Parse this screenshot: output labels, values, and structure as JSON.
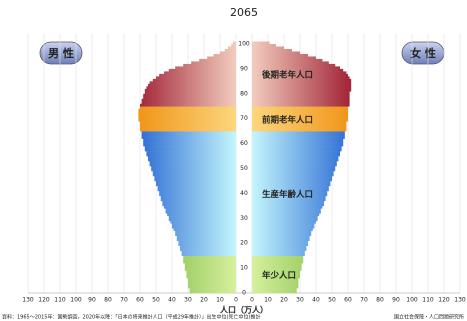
{
  "chart_data": {
    "type": "population-pyramid",
    "title": "2065",
    "left_label": "男 性",
    "right_label": "女 性",
    "x_label": "人口（万人）",
    "source": "資料：1965～2015年：国勢調査，2020年以降：「日本の将来推計人口（平成29年推計）」出生中位(死亡中位)推計",
    "logo": "国立社会保障・人口問題研究所",
    "ages": [
      0,
      1,
      2,
      3,
      4,
      5,
      6,
      7,
      8,
      9,
      10,
      11,
      12,
      13,
      14,
      15,
      16,
      17,
      18,
      19,
      20,
      21,
      22,
      23,
      24,
      25,
      26,
      27,
      28,
      29,
      30,
      31,
      32,
      33,
      34,
      35,
      36,
      37,
      38,
      39,
      40,
      41,
      42,
      43,
      44,
      45,
      46,
      47,
      48,
      49,
      50,
      51,
      52,
      53,
      54,
      55,
      56,
      57,
      58,
      59,
      60,
      61,
      62,
      63,
      64,
      65,
      66,
      67,
      68,
      69,
      70,
      71,
      72,
      73,
      74,
      75,
      76,
      77,
      78,
      79,
      80,
      81,
      82,
      83,
      84,
      85,
      86,
      87,
      88,
      89,
      90,
      91,
      92,
      93,
      94,
      95,
      96,
      97,
      98,
      99,
      100
    ],
    "series": [
      {
        "name": "男 性",
        "side": "left",
        "values": [
          29,
          29,
          30,
          30,
          30,
          30,
          31,
          31,
          31,
          32,
          32,
          32,
          33,
          33,
          33,
          34,
          34,
          35,
          35,
          36,
          36,
          37,
          37,
          38,
          38,
          39,
          40,
          40,
          41,
          42,
          42,
          43,
          44,
          44,
          45,
          46,
          46,
          47,
          47,
          48,
          48,
          49,
          49,
          50,
          50,
          51,
          51,
          52,
          52,
          53,
          53,
          54,
          54,
          55,
          55,
          56,
          56,
          57,
          57,
          58,
          58,
          58,
          59,
          59,
          59,
          60,
          60,
          60,
          60,
          61,
          61,
          61,
          61,
          61,
          60,
          60,
          59,
          59,
          58,
          58,
          57,
          57,
          56,
          55,
          54,
          52,
          50,
          48,
          45,
          42,
          38,
          33,
          28,
          23,
          18,
          14,
          10,
          7,
          5,
          3,
          2
        ]
      },
      {
        "name": "女 性",
        "side": "right",
        "values": [
          28,
          28,
          29,
          29,
          29,
          29,
          30,
          30,
          30,
          31,
          31,
          31,
          32,
          32,
          32,
          33,
          33,
          34,
          34,
          35,
          35,
          36,
          36,
          37,
          37,
          38,
          39,
          39,
          40,
          41,
          41,
          42,
          43,
          43,
          44,
          45,
          45,
          46,
          46,
          47,
          47,
          48,
          48,
          49,
          49,
          50,
          50,
          51,
          51,
          52,
          52,
          53,
          53,
          54,
          54,
          55,
          55,
          56,
          56,
          57,
          57,
          57,
          58,
          58,
          58,
          59,
          59,
          59,
          59,
          60,
          60,
          60,
          60,
          60,
          60,
          61,
          61,
          61,
          61,
          61,
          61,
          62,
          62,
          62,
          62,
          62,
          61,
          60,
          59,
          57,
          55,
          52,
          48,
          44,
          40,
          35,
          30,
          25,
          20,
          15,
          11
        ]
      }
    ],
    "age_groups": [
      {
        "label": "年少人口",
        "start": 0,
        "end": 14,
        "colors": [
          "#d6f09c",
          "#74b43e"
        ]
      },
      {
        "label": "生産年齢人口",
        "start": 15,
        "end": 64,
        "colors": [
          "#c4f6fc",
          "#2c6cd4"
        ]
      },
      {
        "label": "前期老年人口",
        "start": 65,
        "end": 74,
        "colors": [
          "#fcd67e",
          "#f0961a"
        ]
      },
      {
        "label": "後期老年人口",
        "start": 75,
        "end": 100,
        "colors": [
          "#f3cdbd",
          "#a3283a"
        ]
      }
    ],
    "ylim": [
      0,
      100
    ],
    "yticks": [
      0,
      10,
      20,
      30,
      40,
      50,
      60,
      70,
      80,
      90,
      100
    ],
    "xlim": [
      0,
      130
    ],
    "xticks": [
      0,
      10,
      20,
      30,
      40,
      50,
      60,
      70,
      80,
      90,
      100,
      110,
      120,
      130
    ],
    "grid": true
  }
}
